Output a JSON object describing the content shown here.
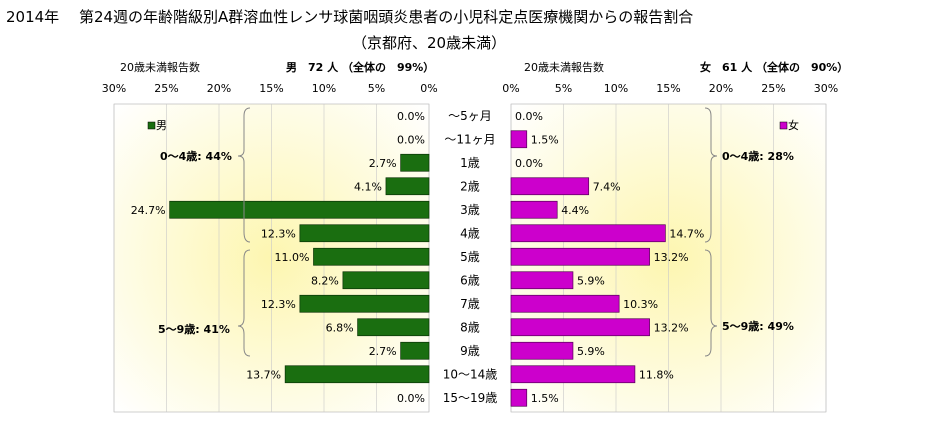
{
  "title": "2014年　 第24週の年齢階級別A群溶血性レンサ球菌咽頭炎患者の小児科定点医療機関からの報告割合",
  "subtitle": "（京都府、20歳未満）",
  "left_header": {
    "label": "20歳未満報告数",
    "summary": "男　72 人 （全体の　99%）"
  },
  "right_header": {
    "label": "20歳未満報告数",
    "summary": "女　61 人 （全体の　90%）"
  },
  "colors": {
    "male": "#1a6e10",
    "female": "#cc00cc",
    "gradient_center": "#fdf6b0",
    "gradient_edge": "#ffffff"
  },
  "chart_data": {
    "type": "bar",
    "orientation": "horizontal-population-pyramid",
    "categories": [
      "～5ヶ月",
      "～11ヶ月",
      "1歳",
      "2歳",
      "3歳",
      "4歳",
      "5歳",
      "6歳",
      "7歳",
      "8歳",
      "9歳",
      "10～14歳",
      "15～19歳"
    ],
    "series": [
      {
        "name": "男",
        "values": [
          0.0,
          0.0,
          2.7,
          4.1,
          24.7,
          12.3,
          11.0,
          8.2,
          12.3,
          6.8,
          2.7,
          13.7,
          0.0
        ],
        "labels": [
          "0.0%",
          "0.0%",
          "2.7%",
          "4.1%",
          "24.7%",
          "12.3%",
          "11.0%",
          "8.2%",
          "12.3%",
          "6.8%",
          "2.7%",
          "13.7%",
          "0.0%"
        ]
      },
      {
        "name": "女",
        "values": [
          0.0,
          1.5,
          0.0,
          7.4,
          4.4,
          14.7,
          13.2,
          5.9,
          10.3,
          13.2,
          5.9,
          11.8,
          1.5
        ],
        "labels": [
          "0.0%",
          "1.5%",
          "0.0%",
          "7.4%",
          "4.4%",
          "14.7%",
          "13.2%",
          "5.9%",
          "10.3%",
          "13.2%",
          "5.9%",
          "11.8%",
          "1.5%"
        ]
      }
    ],
    "xlim": [
      0,
      30
    ],
    "x_ticks_left": [
      "30%",
      "25%",
      "20%",
      "15%",
      "10%",
      "5%",
      "0%"
    ],
    "x_ticks_right": [
      "0%",
      "5%",
      "10%",
      "15%",
      "20%",
      "25%",
      "30%"
    ],
    "legend_left": "男",
    "legend_right": "女",
    "annotations": {
      "male_0_4": "0～4歳: 44%",
      "male_5_9": "5～9歳: 41%",
      "female_0_4": "0～4歳: 28%",
      "female_5_9": "5～9歳: 49%"
    },
    "legend_placement": "top-left / top-right"
  }
}
